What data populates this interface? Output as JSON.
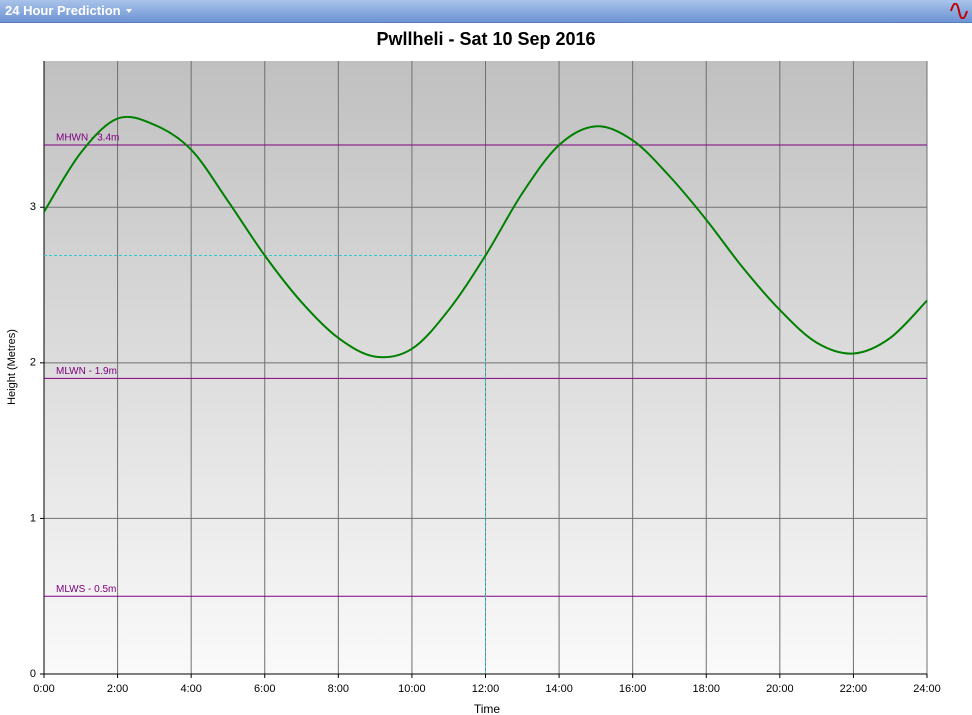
{
  "panel_title": "24 Hour Prediction",
  "chart_data": {
    "type": "line",
    "title": "Pwllheli - Sat 10 Sep 2016",
    "x_label": "Time",
    "y_label": "Height (Metres)",
    "x": [
      0,
      1,
      2,
      3,
      4,
      5,
      6,
      7,
      8,
      9,
      10,
      11,
      12,
      13,
      14,
      15,
      16,
      17,
      18,
      19,
      20,
      21,
      22,
      23,
      24
    ],
    "series": [
      {
        "color": "#008000",
        "values": [
          2.97,
          3.35,
          3.57,
          3.53,
          3.37,
          3.04,
          2.69,
          2.39,
          2.16,
          2.04,
          2.09,
          2.34,
          2.69,
          3.09,
          3.4,
          3.52,
          3.43,
          3.2,
          2.92,
          2.61,
          2.34,
          2.13,
          2.06,
          2.16,
          2.4
        ]
      }
    ],
    "xlim": [
      0,
      24
    ],
    "xticks": [
      {
        "value": 0,
        "label": "0:00"
      },
      {
        "value": 2,
        "label": "2:00"
      },
      {
        "value": 4,
        "label": "4:00"
      },
      {
        "value": 6,
        "label": "6:00"
      },
      {
        "value": 8,
        "label": "8:00"
      },
      {
        "value": 10,
        "label": "10:00"
      },
      {
        "value": 12,
        "label": "12:00"
      },
      {
        "value": 14,
        "label": "14:00"
      },
      {
        "value": 16,
        "label": "16:00"
      },
      {
        "value": 18,
        "label": "18:00"
      },
      {
        "value": 20,
        "label": "20:00"
      },
      {
        "value": 22,
        "label": "22:00"
      },
      {
        "value": 24,
        "label": "24:00"
      }
    ],
    "ylim": [
      0,
      3.94
    ],
    "yticks": [
      0,
      1,
      2,
      3
    ],
    "grid": true,
    "ref_lines": [
      {
        "label": "MHWN - 3.4m",
        "value": 3.4,
        "color": "#800080"
      },
      {
        "label": "MLWN - 1.9m",
        "value": 1.9,
        "color": "#800080"
      },
      {
        "label": "MLWS - 0.5m",
        "value": 0.5,
        "color": "#800080"
      }
    ],
    "cursor": {
      "x": 12,
      "y": 2.69,
      "color": "#33cccc"
    }
  }
}
